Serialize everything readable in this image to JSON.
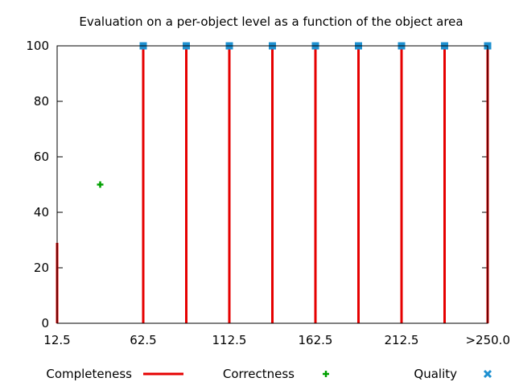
{
  "chart_data": {
    "type": "line",
    "title": "Evaluation on a per-object level as a function of the object area",
    "xlabel": "",
    "ylabel": "",
    "xlim": [
      12.5,
      262.5
    ],
    "ylim": [
      0,
      100
    ],
    "x_ticks": [
      {
        "value": 12.5,
        "label": "12.5"
      },
      {
        "value": 62.5,
        "label": "62.5"
      },
      {
        "value": 112.5,
        "label": "112.5"
      },
      {
        "value": 162.5,
        "label": "162.5"
      },
      {
        "value": 212.5,
        "label": "212.5"
      },
      {
        "value": 262.5,
        "label": ">250.0"
      }
    ],
    "y_ticks": [
      0,
      20,
      40,
      60,
      80,
      100
    ],
    "grid": false,
    "legend_position": "bottom",
    "series": [
      {
        "name": "Completeness",
        "style": "impulses",
        "color": "#e60000",
        "points": [
          {
            "x": 12.5,
            "y": 29
          },
          {
            "x": 62.5,
            "y": 100
          },
          {
            "x": 87.5,
            "y": 100
          },
          {
            "x": 112.5,
            "y": 100
          },
          {
            "x": 137.5,
            "y": 100
          },
          {
            "x": 162.5,
            "y": 100
          },
          {
            "x": 187.5,
            "y": 100
          },
          {
            "x": 212.5,
            "y": 100
          },
          {
            "x": 237.5,
            "y": 100
          },
          {
            "x": 262.5,
            "y": 100
          }
        ]
      },
      {
        "name": "Correctness",
        "style": "points-plus",
        "color": "#00a000",
        "points": [
          {
            "x": 37.5,
            "y": 50
          }
        ]
      },
      {
        "name": "Quality",
        "style": "points-square",
        "color": "#1e90d0",
        "points": [
          {
            "x": 62.5,
            "y": 100
          },
          {
            "x": 87.5,
            "y": 100
          },
          {
            "x": 112.5,
            "y": 100
          },
          {
            "x": 137.5,
            "y": 100
          },
          {
            "x": 162.5,
            "y": 100
          },
          {
            "x": 187.5,
            "y": 100
          },
          {
            "x": 212.5,
            "y": 100
          },
          {
            "x": 237.5,
            "y": 100
          },
          {
            "x": 262.5,
            "y": 100
          }
        ]
      }
    ]
  }
}
